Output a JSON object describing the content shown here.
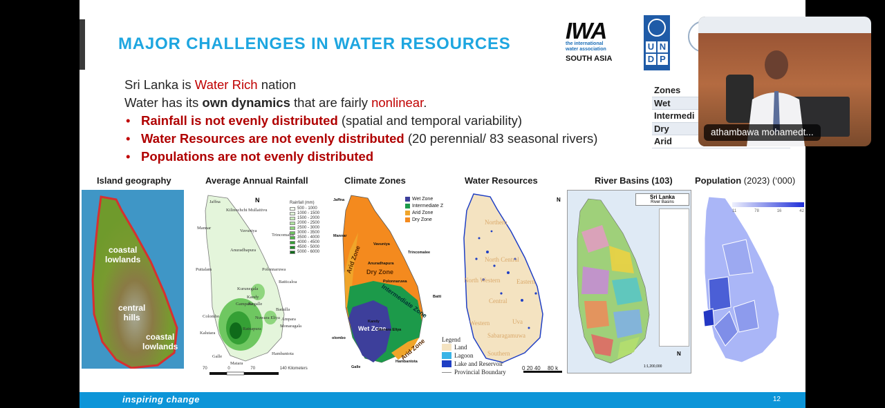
{
  "slide": {
    "title": "MAJOR CHALLENGES IN WATER RESOURCES",
    "logos": {
      "iwa_mark": "IWA",
      "iwa_line1": "the international",
      "iwa_line2": "water association",
      "iwa_region": "SOUTH ASIA",
      "undp_letters": [
        "U",
        "N",
        "D",
        "P"
      ]
    },
    "lines": {
      "l1_a": "Sri Lanka is ",
      "l1_b": "Water Rich",
      "l1_c": " nation",
      "l2_a": "Water has its ",
      "l2_b": "own dynamics",
      "l2_c": " that are fairly ",
      "l2_d": "nonlinear",
      "l2_e": ".",
      "bullet_glyph": "•",
      "b1_bold": "Rainfall is not evenly distributed",
      "b1_rest": " (spatial and temporal variability)",
      "b2_bold": "Water Resources are not evenly distributed",
      "b2_rest": " (20 perennial/ 83 seasonal rivers)",
      "b3_bold": "Populations are not evenly distributed"
    },
    "zones_table": [
      "Zones",
      "Wet",
      "Intermedi",
      "Dry",
      "Arid"
    ],
    "captions": {
      "island": "Island geography",
      "rainfall": "Average Annual Rainfall",
      "climate": "Climate Zones",
      "water": "Water Resources",
      "basins": "River Basins (103)",
      "population_bold": "Population",
      "population_rest": " (2023) (‘000)"
    },
    "island_map": {
      "coastal_top": [
        "coastal",
        "lowlands"
      ],
      "central": [
        "central",
        "hills"
      ],
      "coastal_bottom": [
        "coastal",
        "lowlands"
      ]
    },
    "rainfall_map": {
      "cities": [
        "Jaffna",
        "Kilinochchi",
        "Mullaitivu",
        "Mannar",
        "Vavuniya",
        "Trincomalee",
        "Anuradhapura",
        "Puttalam",
        "Polonnaruwa",
        "Kurunegala",
        "Batticaloa",
        "Kandy",
        "Kegalle",
        "Gampaha",
        "Badulla",
        "Ampara",
        "Colombo",
        "Nuwara Eliya",
        "Ratnapura",
        "Monaragala",
        "Kalutara",
        "Hambantota",
        "Galle",
        "Matara"
      ],
      "legend_title": "Rainfall (mm)",
      "legend": [
        "500 - 1000",
        "1000 - 1500",
        "1500 - 2000",
        "2000 - 2500",
        "2500 - 3000",
        "3000 - 3500",
        "3500 - 4000",
        "4000 - 4500",
        "4500 - 5000",
        "5000 - 6000"
      ],
      "legend_colors": [
        "#f3fbef",
        "#dff4d6",
        "#c8ecbb",
        "#aee39e",
        "#8fd67e",
        "#6fc761",
        "#4fb547",
        "#35a035",
        "#1f8a26",
        "#0f6b1a"
      ],
      "north_arrow": "N",
      "scale": [
        "70",
        "0",
        "70",
        "140 Kilometers"
      ]
    },
    "climate_map": {
      "legend": [
        "Wet Zone",
        "Intermediate Z",
        "Arid Zone",
        "Dry Zone"
      ],
      "legend_colors": [
        "#3d3f9b",
        "#1c9a4a",
        "#f0a52a",
        "#f48a1e"
      ],
      "labels": [
        "Arid Zone",
        "Dry Zone",
        "Intermediate Zone",
        "Wet Zone",
        "Arid Zone"
      ],
      "cities": [
        "Jaffna",
        "Mannar",
        "Vavuniya",
        "Trincomalee",
        "Anuradhapura",
        "Polonnaruwa",
        "Batti",
        "Kandy",
        "Nuwara Eliya",
        "olombo",
        "Galle",
        "Hambantota"
      ]
    },
    "water_map": {
      "provinces": [
        "Northern",
        "North Central",
        "North Western",
        "Eastern",
        "Central",
        "Western",
        "Uva",
        "Sabaragamuwa",
        "Southern"
      ],
      "legend_title": "Legend",
      "legend": [
        "Land",
        "Lagoon",
        "Lake and Reservoir",
        "Provincial Boundary"
      ],
      "legend_colors": [
        "#f4e3c1",
        "#39b4e6",
        "#1f3fc4",
        "#8a8a8a"
      ],
      "north_arrow": "N",
      "scale": [
        "0",
        "20",
        "40",
        "80",
        "k"
      ]
    },
    "basins_map": {
      "title": "Sri Lanka",
      "subtitle": "River Basins",
      "north_arrow": "N",
      "scale": "1:1,200,000"
    },
    "population_map": {
      "legend_ticks": [
        "11",
        "78",
        "16",
        "42"
      ]
    },
    "footer": {
      "text": "inspiring change",
      "page": "12"
    }
  },
  "video": {
    "name": "athambawa mohamedt..."
  }
}
